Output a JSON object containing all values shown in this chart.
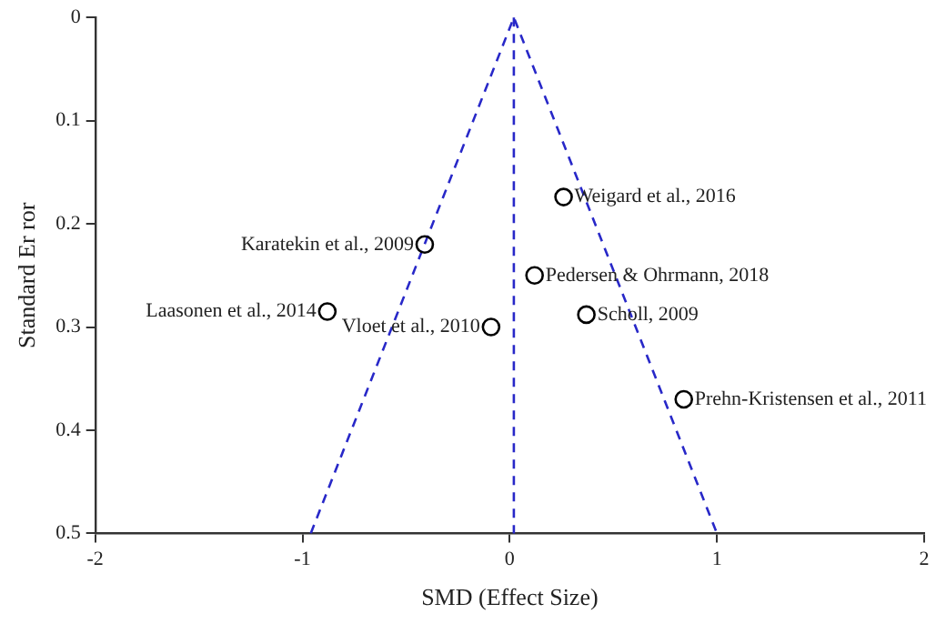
{
  "chart_data": {
    "type": "scatter",
    "xlabel": "SMD (Effect Size)",
    "ylabel": "Standard Er ror",
    "xlim": [
      -2,
      2
    ],
    "xticks": [
      -2,
      -1,
      0,
      1,
      2
    ],
    "ylim": [
      0.5,
      0
    ],
    "yticks": [
      0,
      0.1,
      0.2,
      0.3,
      0.4,
      0.5
    ],
    "grid": false,
    "legend": false,
    "marker": "circle",
    "series": [
      {
        "color": "#000000",
        "x": [
          -0.41,
          -0.88,
          -0.09,
          0.26,
          0.12,
          0.37,
          0.84
        ],
        "values": [
          0.22,
          0.285,
          0.3,
          0.174,
          0.25,
          0.288,
          0.37
        ]
      },
      {
        "type": "line",
        "color": "#2828c8",
        "line_style": "dashed",
        "marker": "none",
        "x": [
          -0.96,
          0.02,
          1.0
        ],
        "values": [
          0.5,
          0,
          0.5
        ]
      }
    ],
    "ref_lines": [
      {
        "axis": "x",
        "value": 0.02,
        "color": "#2828c8",
        "line_style": "dashed"
      }
    ],
    "annotations": [
      {
        "text": "Karatekin et al., 2009",
        "x": -0.41,
        "y": 0.22
      },
      {
        "text": "Laasonen et al., 2014",
        "x": -0.88,
        "y": 0.285
      },
      {
        "text": "Vloet et al., 2010",
        "x": -0.09,
        "y": 0.3
      },
      {
        "text": "Weigard et al., 2016",
        "x": 0.26,
        "y": 0.174
      },
      {
        "text": "Pedersen & Ohrmann, 2018",
        "x": 0.12,
        "y": 0.25
      },
      {
        "text": "Scholl, 2009",
        "x": 0.37,
        "y": 0.288
      },
      {
        "text": "Prehn-Kristensen et al., 2011",
        "x": 0.84,
        "y": 0.37
      }
    ]
  }
}
